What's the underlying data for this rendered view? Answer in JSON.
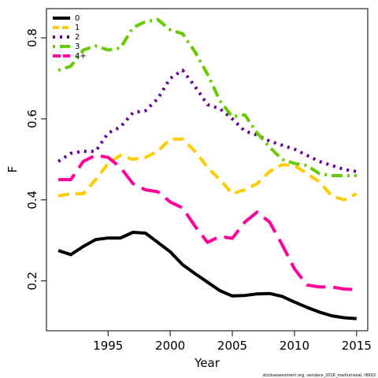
{
  "chart_data": {
    "type": "line",
    "x_label": "Year",
    "y_label": "F",
    "footnote": "stockassessment.org, vendace_2016_mediumseal, r8602",
    "x": [
      1991,
      1992,
      1993,
      1994,
      1995,
      1996,
      1997,
      1998,
      1999,
      2000,
      2001,
      2002,
      2003,
      2004,
      2005,
      2006,
      2007,
      2008,
      2009,
      2010,
      2011,
      2012,
      2013,
      2014,
      2015
    ],
    "series": [
      {
        "name": "0",
        "color": "#000000",
        "linestyle": "solid",
        "values": [
          0.275,
          0.265,
          0.285,
          0.302,
          0.306,
          0.306,
          0.32,
          0.318,
          0.295,
          0.272,
          0.24,
          0.218,
          0.197,
          0.176,
          0.163,
          0.164,
          0.168,
          0.169,
          0.162,
          0.148,
          0.135,
          0.123,
          0.114,
          0.109,
          0.107
        ]
      },
      {
        "name": "1",
        "color": "#ffcc00",
        "linestyle": "dashed",
        "values": [
          0.41,
          0.415,
          0.415,
          0.45,
          0.49,
          0.51,
          0.5,
          0.505,
          0.52,
          0.55,
          0.55,
          0.52,
          0.48,
          0.45,
          0.415,
          0.425,
          0.44,
          0.47,
          0.487,
          0.485,
          0.465,
          0.445,
          0.41,
          0.4,
          0.415
        ]
      },
      {
        "name": "2",
        "color": "#660099",
        "linestyle": "dotted",
        "values": [
          0.495,
          0.515,
          0.52,
          0.52,
          0.565,
          0.58,
          0.615,
          0.62,
          0.65,
          0.7,
          0.72,
          0.68,
          0.635,
          0.625,
          0.6,
          0.57,
          0.56,
          0.545,
          0.535,
          0.525,
          0.51,
          0.495,
          0.485,
          0.475,
          0.47
        ]
      },
      {
        "name": "3",
        "color": "#66cc00",
        "linestyle": "dotdash",
        "values": [
          0.72,
          0.73,
          0.77,
          0.78,
          0.77,
          0.775,
          0.825,
          0.84,
          0.845,
          0.82,
          0.81,
          0.765,
          0.71,
          0.645,
          0.605,
          0.61,
          0.565,
          0.53,
          0.5,
          0.49,
          0.485,
          0.465,
          0.46,
          0.46,
          0.46
        ]
      },
      {
        "name": "4+",
        "color": "#ff0099",
        "linestyle": "longdash",
        "values": [
          0.45,
          0.45,
          0.495,
          0.51,
          0.505,
          0.48,
          0.44,
          0.425,
          0.42,
          0.395,
          0.38,
          0.335,
          0.295,
          0.31,
          0.305,
          0.345,
          0.37,
          0.345,
          0.29,
          0.23,
          0.19,
          0.185,
          0.185,
          0.18,
          0.178
        ]
      }
    ],
    "xlim": [
      1990.04,
      2015.9
    ],
    "ylim": [
      0.077,
      0.872
    ],
    "xticks": [
      1995,
      2000,
      2005,
      2010,
      2015
    ],
    "yticks": [
      0.2,
      0.4,
      0.6,
      0.8
    ],
    "legend": "top-left"
  }
}
